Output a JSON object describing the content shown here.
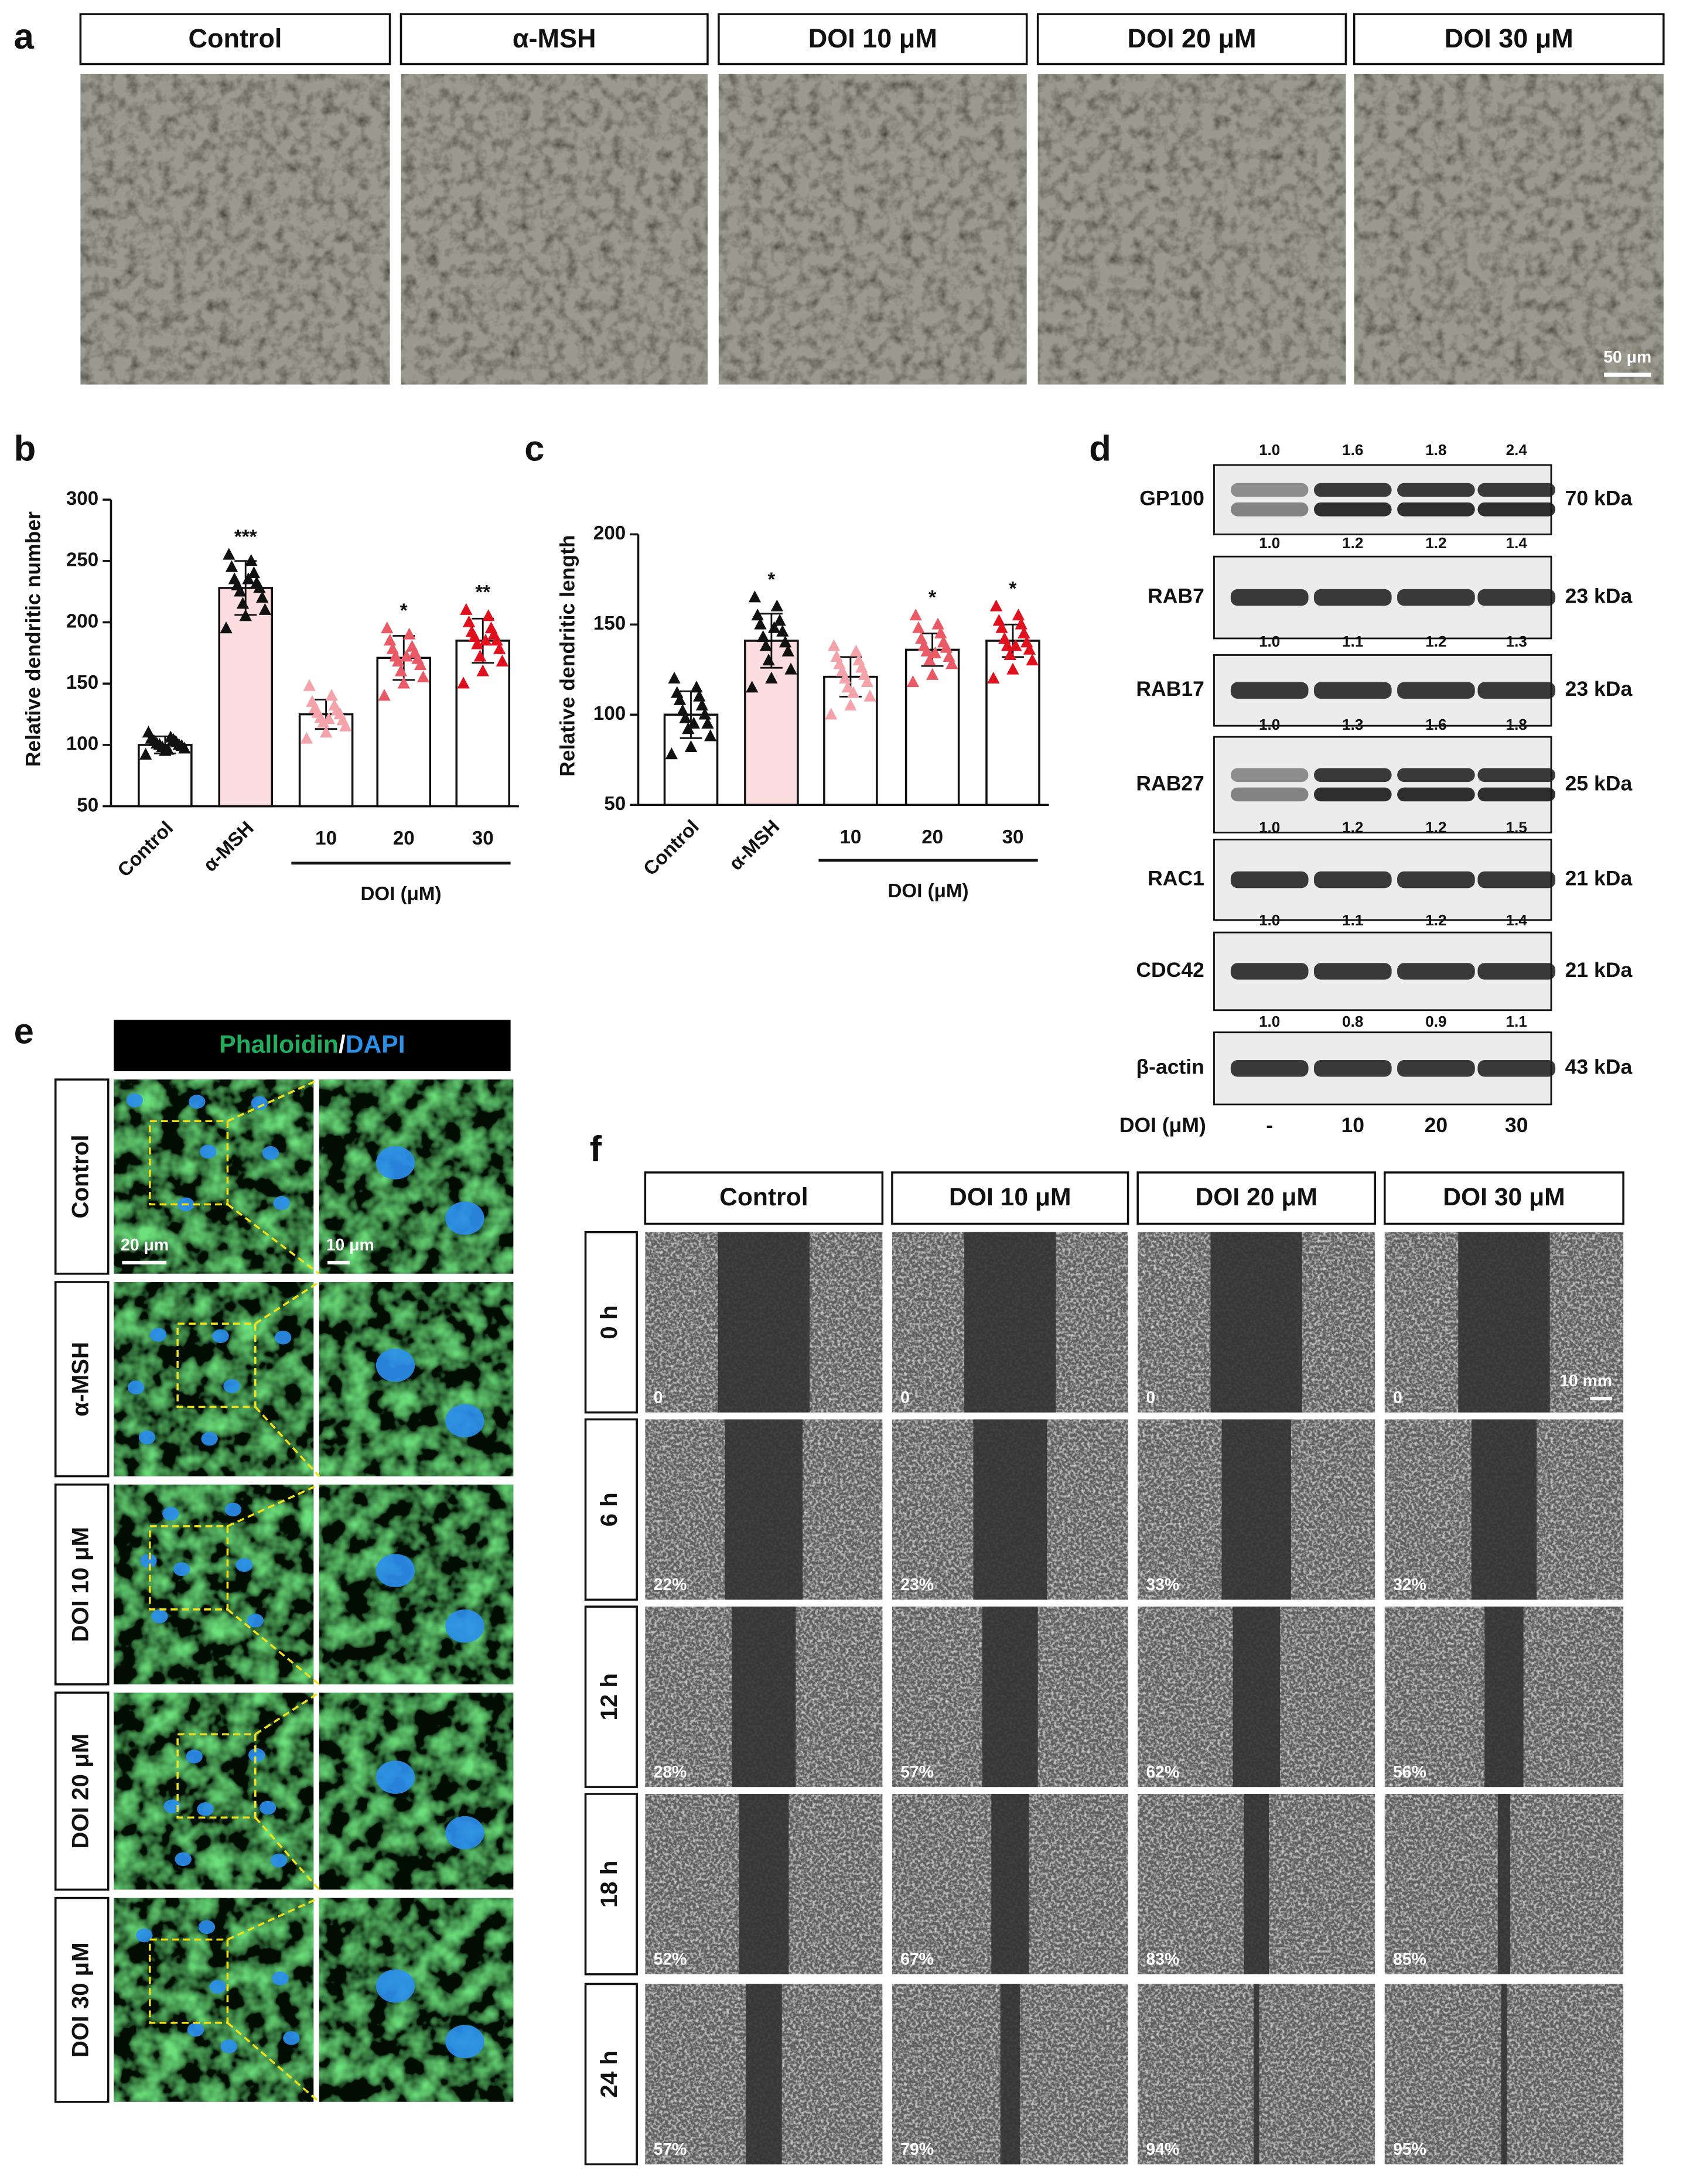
{
  "panel_labels": [
    "a",
    "b",
    "c",
    "d",
    "e",
    "f"
  ],
  "panel_a": {
    "headers": [
      "Control",
      "α-MSH",
      "DOI 10 μM",
      "DOI 20 μM",
      "DOI 30 μM"
    ],
    "scale_bar": "50 μm"
  },
  "chart_data": [
    {
      "type": "bar",
      "y_label": "Relative dendritic number",
      "categories": [
        "Control",
        "α-MSH",
        "10",
        "20",
        "30"
      ],
      "values": [
        100,
        228,
        125,
        171,
        185
      ],
      "errors": [
        7,
        22,
        12,
        18,
        18
      ],
      "significance": [
        null,
        "***",
        null,
        "*",
        "**"
      ],
      "points": [
        [
          92,
          95,
          97,
          98,
          99,
          100,
          100,
          101,
          102,
          103,
          104,
          105,
          106,
          110,
          96
        ],
        [
          195,
          205,
          210,
          215,
          220,
          225,
          228,
          230,
          232,
          235,
          240,
          245,
          250,
          255,
          235
        ],
        [
          105,
          110,
          115,
          118,
          120,
          122,
          125,
          126,
          128,
          130,
          132,
          135,
          140,
          148,
          121
        ],
        [
          140,
          150,
          155,
          160,
          165,
          168,
          170,
          172,
          175,
          178,
          180,
          185,
          190,
          195,
          172
        ],
        [
          150,
          160,
          168,
          172,
          178,
          182,
          185,
          188,
          190,
          192,
          195,
          200,
          205,
          210,
          185
        ]
      ],
      "bar_colors": [
        "#ffffff",
        "#fcdde0",
        "#ffffff",
        "#ffffff",
        "#ffffff"
      ],
      "point_colors": [
        "#111111",
        "#111111",
        "#f4a3ab",
        "#ea5a66",
        "#e0101e"
      ],
      "group_label": "DOI (μM)",
      "ylim": [
        50,
        300
      ],
      "yticks": [
        50,
        100,
        150,
        200,
        250,
        300
      ]
    },
    {
      "type": "bar",
      "y_label": "Relative dendritic length",
      "categories": [
        "Control",
        "α-MSH",
        "10",
        "20",
        "30"
      ],
      "values": [
        100,
        141,
        121,
        136,
        141
      ],
      "errors": [
        13,
        15,
        11,
        9,
        9
      ],
      "significance": [
        null,
        "*",
        null,
        "*",
        "*"
      ],
      "points": [
        [
          78,
          82,
          88,
          92,
          95,
          98,
          100,
          102,
          105,
          108,
          110,
          112,
          115,
          120,
          95
        ],
        [
          115,
          120,
          125,
          130,
          135,
          138,
          140,
          143,
          146,
          150,
          152,
          155,
          160,
          165,
          148
        ],
        [
          100,
          105,
          110,
          115,
          118,
          120,
          122,
          124,
          126,
          128,
          130,
          132,
          135,
          138,
          112
        ],
        [
          118,
          122,
          128,
          130,
          132,
          135,
          137,
          138,
          140,
          142,
          145,
          148,
          150,
          155,
          134
        ],
        [
          120,
          125,
          130,
          133,
          136,
          138,
          140,
          142,
          145,
          148,
          150,
          152,
          155,
          160,
          138
        ]
      ],
      "bar_colors": [
        "#ffffff",
        "#fcdde0",
        "#ffffff",
        "#ffffff",
        "#ffffff"
      ],
      "point_colors": [
        "#111111",
        "#111111",
        "#f4a3ab",
        "#ea5a66",
        "#e0101e"
      ],
      "group_label": "DOI (μM)",
      "ylim": [
        50,
        200
      ],
      "yticks": [
        50,
        100,
        150,
        200
      ]
    }
  ],
  "panel_d": {
    "rows": [
      {
        "protein": "GP100",
        "ratios": [
          "1.0",
          "1.6",
          "1.8",
          "2.4"
        ],
        "size": "70 kDa"
      },
      {
        "protein": "RAB7",
        "ratios": [
          "1.0",
          "1.2",
          "1.2",
          "1.4"
        ],
        "size": "23 kDa"
      },
      {
        "protein": "RAB17",
        "ratios": [
          "1.0",
          "1.1",
          "1.2",
          "1.3"
        ],
        "size": "23 kDa"
      },
      {
        "protein": "RAB27",
        "ratios": [
          "1.0",
          "1.3",
          "1.6",
          "1.8"
        ],
        "size": "25 kDa"
      },
      {
        "protein": "RAC1",
        "ratios": [
          "1.0",
          "1.2",
          "1.2",
          "1.5"
        ],
        "size": "21 kDa"
      },
      {
        "protein": "CDC42",
        "ratios": [
          "1.0",
          "1.1",
          "1.2",
          "1.4"
        ],
        "size": "21 kDa"
      },
      {
        "protein": "β-actin",
        "ratios": [
          "1.0",
          "0.8",
          "0.9",
          "1.1"
        ],
        "size": "43 kDa"
      }
    ],
    "treatment_label": "DOI (μM)",
    "treatments": [
      "-",
      "10",
      "20",
      "30"
    ]
  },
  "panel_e": {
    "stain": [
      "Phalloidin",
      "/",
      "DAPI"
    ],
    "rows": [
      "Control",
      "α-MSH",
      "DOI 10 μM",
      "DOI 20 μM",
      "DOI 30 μM"
    ],
    "scale_bars": [
      "20 μm",
      "10 μm"
    ]
  },
  "panel_f": {
    "columns": [
      "Control",
      "DOI 10 μM",
      "DOI 20 μM",
      "DOI 30 μM"
    ],
    "rows": [
      "0 h",
      "6 h",
      "12 h",
      "18 h",
      "24 h"
    ],
    "closure": [
      [
        "0",
        "0",
        "0",
        "0"
      ],
      [
        "22%",
        "23%",
        "33%",
        "32%"
      ],
      [
        "28%",
        "57%",
        "62%",
        "56%"
      ],
      [
        "52%",
        "67%",
        "83%",
        "85%"
      ],
      [
        "57%",
        "79%",
        "94%",
        "95%"
      ]
    ],
    "scale_bar": "10 mm"
  }
}
